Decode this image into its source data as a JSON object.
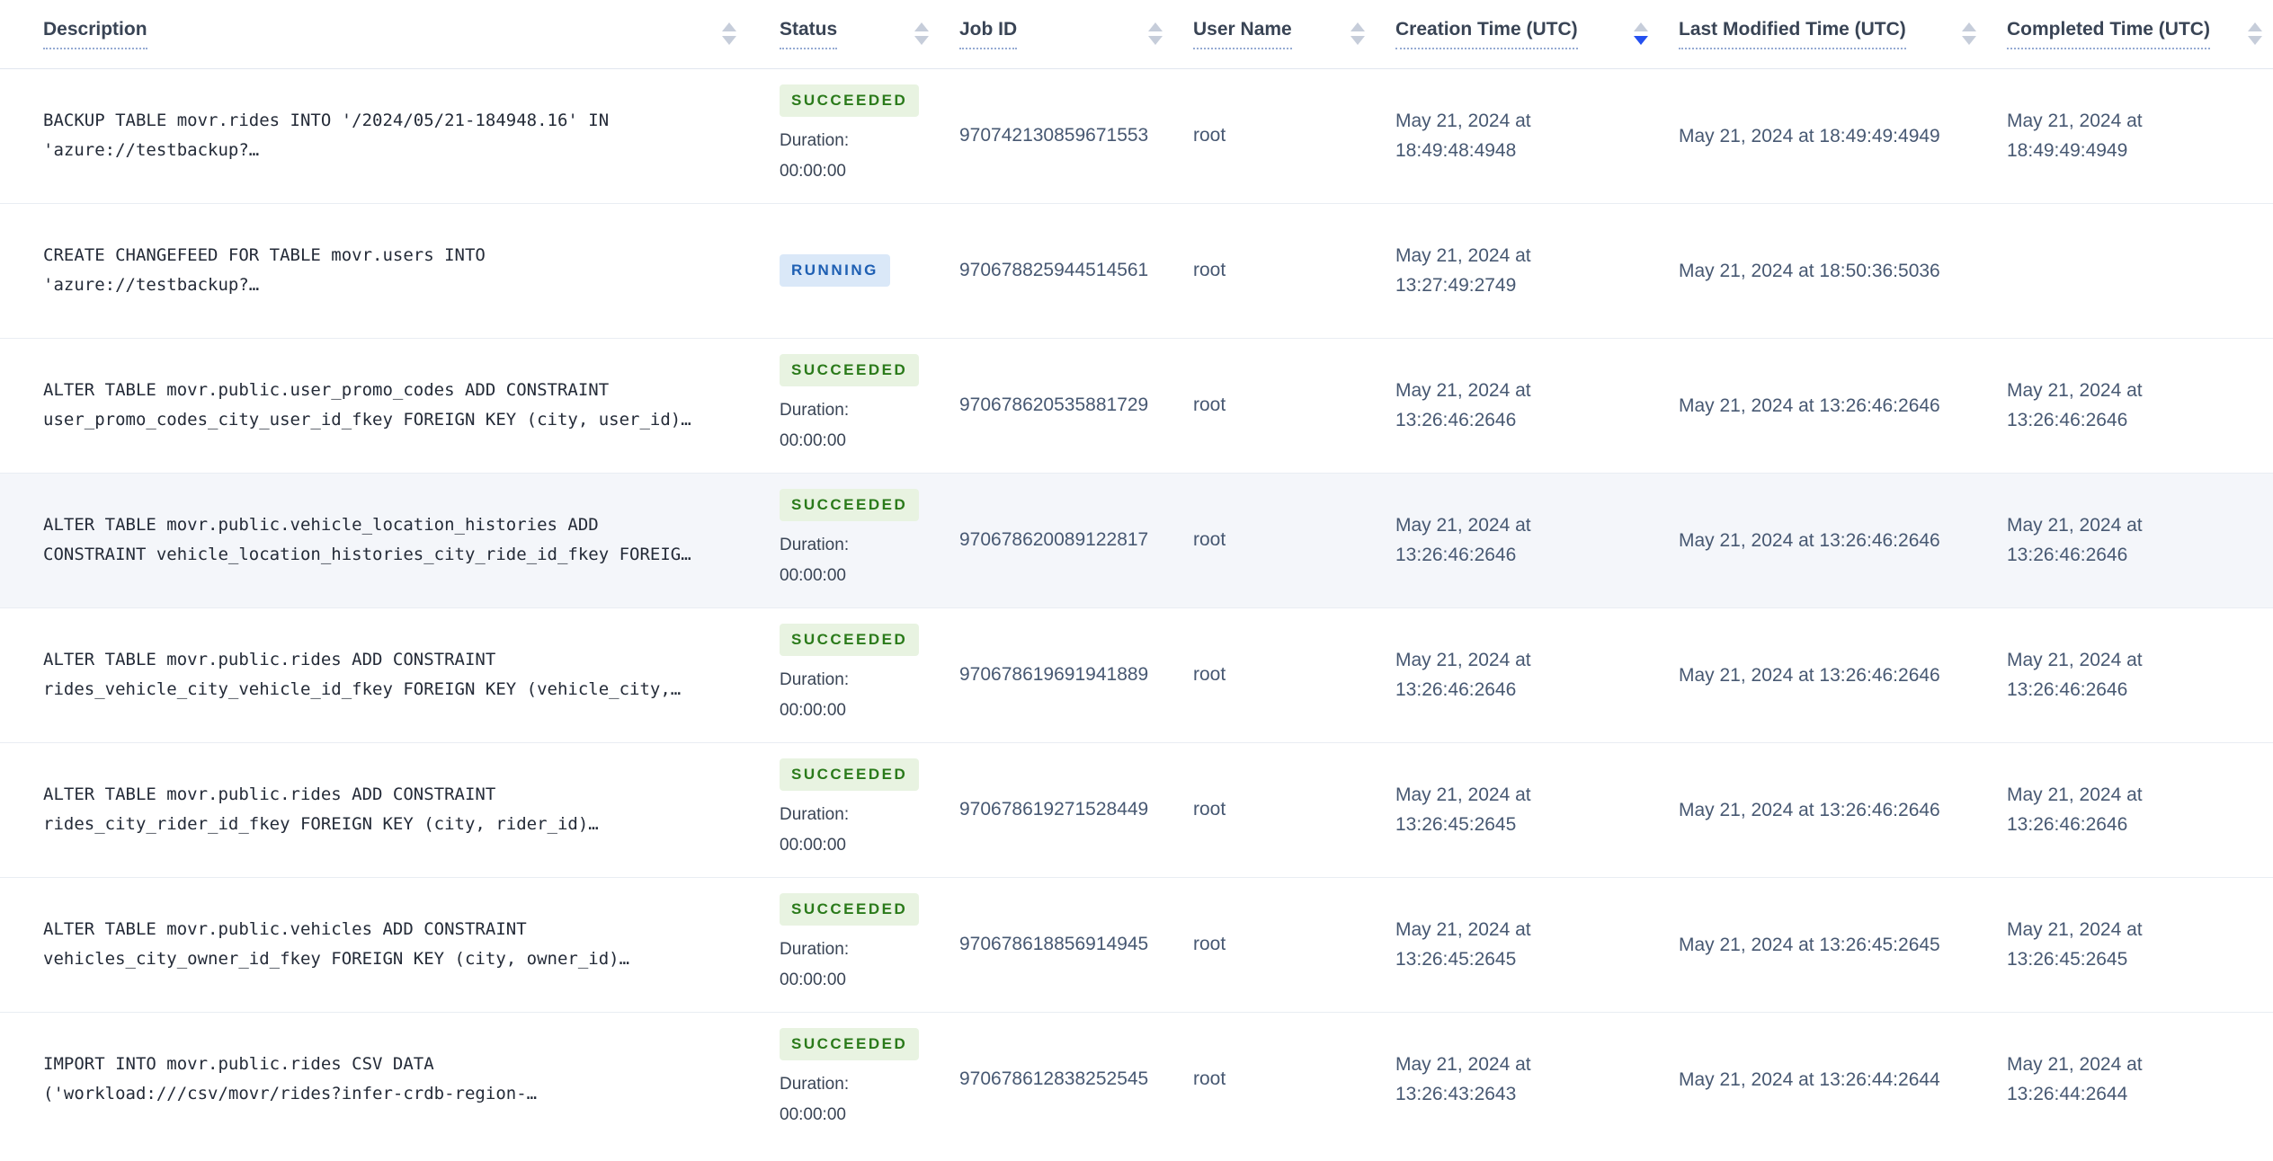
{
  "table": {
    "columns": [
      {
        "label": "Description",
        "sort": "none"
      },
      {
        "label": "Status",
        "sort": "none"
      },
      {
        "label": "Job ID",
        "sort": "none"
      },
      {
        "label": "User Name",
        "sort": "none"
      },
      {
        "label": "Creation Time (UTC)",
        "sort": "desc"
      },
      {
        "label": "Last Modified Time (UTC)",
        "sort": "none"
      },
      {
        "label": "Completed Time (UTC)",
        "sort": "none"
      }
    ],
    "duration_label": "Duration:",
    "duration_value": "00:00:00",
    "rows": [
      {
        "description_lines": [
          "BACKUP TABLE movr.rides INTO '/2024/05/21-184948.16' IN",
          "'azure://testbackup?…"
        ],
        "status": "SUCCEEDED",
        "job_id": "970742130859671553",
        "user_name": "root",
        "created": "May 21, 2024 at 18:49:48:4948",
        "modified": "May 21, 2024 at 18:49:49:4949",
        "completed": "May 21, 2024 at 18:49:49:4949"
      },
      {
        "description_lines": [
          "CREATE CHANGEFEED FOR TABLE movr.users INTO",
          "'azure://testbackup?…"
        ],
        "status": "RUNNING",
        "job_id": "970678825944514561",
        "user_name": "root",
        "created": "May 21, 2024 at 13:27:49:2749",
        "modified": "May 21, 2024 at 18:50:36:5036",
        "completed": ""
      },
      {
        "description_lines": [
          "ALTER TABLE movr.public.user_promo_codes ADD CONSTRAINT",
          "user_promo_codes_city_user_id_fkey FOREIGN KEY (city, user_id)…"
        ],
        "status": "SUCCEEDED",
        "job_id": "970678620535881729",
        "user_name": "root",
        "created": "May 21, 2024 at 13:26:46:2646",
        "modified": "May 21, 2024 at 13:26:46:2646",
        "completed": "May 21, 2024 at 13:26:46:2646"
      },
      {
        "description_lines": [
          "ALTER TABLE movr.public.vehicle_location_histories ADD",
          "CONSTRAINT vehicle_location_histories_city_ride_id_fkey FOREIG…"
        ],
        "status": "SUCCEEDED",
        "job_id": "970678620089122817",
        "user_name": "root",
        "created": "May 21, 2024 at 13:26:46:2646",
        "modified": "May 21, 2024 at 13:26:46:2646",
        "completed": "May 21, 2024 at 13:26:46:2646"
      },
      {
        "description_lines": [
          "ALTER TABLE movr.public.rides ADD CONSTRAINT",
          "rides_vehicle_city_vehicle_id_fkey FOREIGN KEY (vehicle_city,…"
        ],
        "status": "SUCCEEDED",
        "job_id": "970678619691941889",
        "user_name": "root",
        "created": "May 21, 2024 at 13:26:46:2646",
        "modified": "May 21, 2024 at 13:26:46:2646",
        "completed": "May 21, 2024 at 13:26:46:2646"
      },
      {
        "description_lines": [
          "ALTER TABLE movr.public.rides ADD CONSTRAINT",
          "rides_city_rider_id_fkey FOREIGN KEY (city, rider_id)…"
        ],
        "status": "SUCCEEDED",
        "job_id": "970678619271528449",
        "user_name": "root",
        "created": "May 21, 2024 at 13:26:45:2645",
        "modified": "May 21, 2024 at 13:26:46:2646",
        "completed": "May 21, 2024 at 13:26:46:2646"
      },
      {
        "description_lines": [
          "ALTER TABLE movr.public.vehicles ADD CONSTRAINT",
          "vehicles_city_owner_id_fkey FOREIGN KEY (city, owner_id)…"
        ],
        "status": "SUCCEEDED",
        "job_id": "970678618856914945",
        "user_name": "root",
        "created": "May 21, 2024 at 13:26:45:2645",
        "modified": "May 21, 2024 at 13:26:45:2645",
        "completed": "May 21, 2024 at 13:26:45:2645"
      },
      {
        "description_lines": [
          "IMPORT INTO movr.public.rides CSV DATA",
          "('workload:///csv/movr/rides?infer-crdb-region-…"
        ],
        "status": "SUCCEEDED",
        "job_id": "970678612838252545",
        "user_name": "root",
        "created": "May 21, 2024 at 13:26:43:2643",
        "modified": "May 21, 2024 at 13:26:44:2644",
        "completed": "May 21, 2024 at 13:26:44:2644"
      }
    ]
  },
  "colors": {
    "succeeded_badge_bg": "#e8f3e1",
    "succeeded_badge_text": "#2a7a1a",
    "running_badge_bg": "#dae8f8",
    "running_badge_text": "#1e5fb3",
    "active_sort_arrow": "#2450f0",
    "header_text": "#394455",
    "body_text": "#475872",
    "highlight_row_bg": "#f4f6fa"
  }
}
